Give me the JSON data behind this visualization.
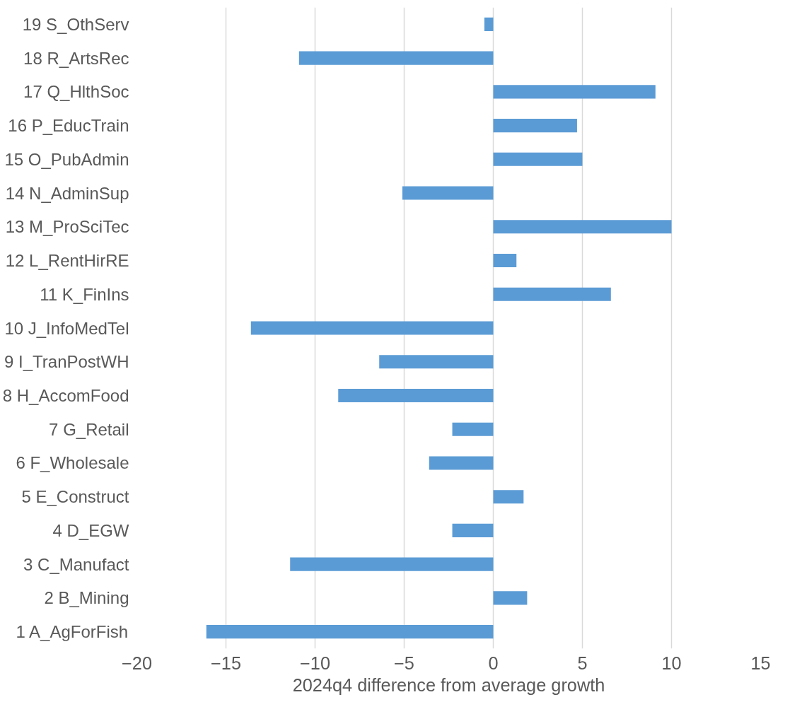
{
  "chart_data": {
    "type": "bar",
    "orientation": "horizontal",
    "xlabel": "2024q4 difference from average growth",
    "categories": [
      "19 S_OthServ",
      "18 R_ArtsRec",
      "17 Q_HlthSoc",
      "16 P_EducTrain",
      "15 O_PubAdmin",
      "14 N_AdminSup",
      "13 M_ProSciTec",
      "12 L_RentHirRE",
      "11 K_FinIns",
      "10 J_InfoMedTel",
      "9 I_TranPostWH",
      "8 H_AccomFood",
      "7 G_Retail",
      "6 F_Wholesale",
      "5 E_Construct",
      "4 D_EGW",
      "3 C_Manufact",
      "2 B_Mining",
      "1 A_AgForFish"
    ],
    "values": [
      -0.5,
      -10.9,
      9.1,
      4.7,
      5.0,
      -5.1,
      10.0,
      1.3,
      6.6,
      -13.6,
      -6.4,
      -8.7,
      -2.3,
      -3.6,
      1.7,
      -2.3,
      -11.4,
      1.9,
      -16.1
    ],
    "color": "#5b9bd5",
    "xlim": [
      -20,
      15
    ],
    "xticks": [
      -20,
      -15,
      -10,
      -5,
      0,
      5,
      10,
      15
    ],
    "grid": "x"
  }
}
